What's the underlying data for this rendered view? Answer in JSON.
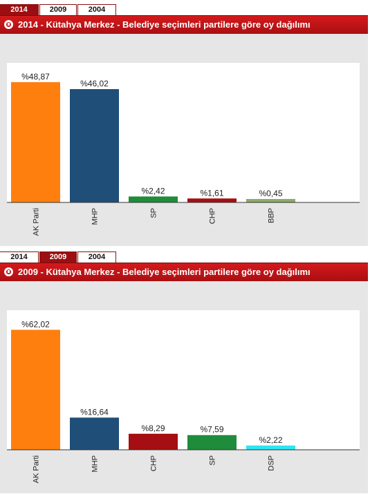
{
  "panels": [
    {
      "tabs": [
        "2014",
        "2009",
        "2004"
      ],
      "active_tab": 0,
      "title": "2014 - Kütahya Merkez - Belediye seçimleri partilere göre oy dağılımı",
      "chart_data": {
        "type": "bar",
        "title": "2014 - Kütahya Merkez - Belediye seçimleri partilere göre oy dağılımı",
        "categories": [
          "AK Parti",
          "MHP",
          "SP",
          "CHP",
          "BBP"
        ],
        "values": [
          48.87,
          46.02,
          2.42,
          1.61,
          0.45
        ],
        "value_labels": [
          "%48,87",
          "%46,02",
          "%2,42",
          "%1,61",
          "%0,45"
        ],
        "colors": [
          "#ff7f0e",
          "#1f4e79",
          "#1e8c3a",
          "#a50e12",
          "#8daa6a"
        ],
        "ylim": [
          0,
          55
        ],
        "grid": false
      }
    },
    {
      "tabs": [
        "2014",
        "2009",
        "2004"
      ],
      "active_tab": 1,
      "title": "2009 - Kütahya Merkez - Belediye seçimleri partilere göre oy dağılımı",
      "chart_data": {
        "type": "bar",
        "title": "2009 - Kütahya Merkez - Belediye seçimleri partilere göre oy dağılımı",
        "categories": [
          "AK Parti",
          "MHP",
          "CHP",
          "SP",
          "DSP"
        ],
        "values": [
          62.02,
          16.64,
          8.29,
          7.59,
          2.22
        ],
        "value_labels": [
          "%62,02",
          "%16,64",
          "%8,29",
          "%7,59",
          "%2,22"
        ],
        "colors": [
          "#ff7f0e",
          "#1f4e79",
          "#a50e12",
          "#1e8c3a",
          "#2ee6f2"
        ],
        "ylim": [
          0,
          70
        ],
        "grid": false
      }
    }
  ]
}
